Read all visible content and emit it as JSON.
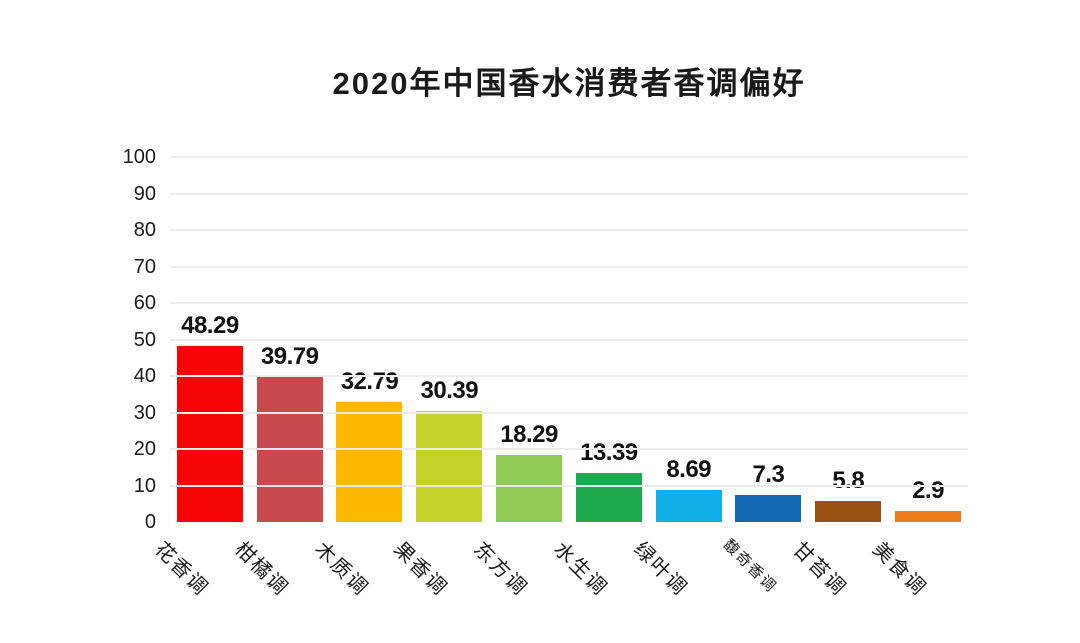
{
  "chart_data": {
    "type": "bar",
    "title": "2020年中国香水消费者香调偏好",
    "categories": [
      "花香调",
      "柑橘调",
      "木质调",
      "果香调",
      "东方调",
      "水生调",
      "绿叶调",
      "馥奇香调",
      "甘苔调",
      "美食调"
    ],
    "values": [
      48.29,
      39.79,
      32.79,
      30.39,
      18.29,
      13.39,
      8.69,
      7.3,
      5.8,
      2.9
    ],
    "value_labels": [
      "48.29",
      "39.79",
      "32.79",
      "30.39",
      "18.29",
      "13.39",
      "8.69",
      "7.3",
      "5.8",
      "2.9"
    ],
    "bar_colors": [
      "#f70505",
      "#c84a4e",
      "#fcb900",
      "#c4d32b",
      "#8fca55",
      "#1fa94e",
      "#12aee9",
      "#1268b3",
      "#9a5213",
      "#f07d1c"
    ],
    "xlabel": "",
    "ylabel": "",
    "ylim": [
      0,
      100
    ],
    "yticks": [
      0,
      10,
      20,
      30,
      40,
      50,
      60,
      70,
      80,
      90,
      100
    ],
    "grid": true,
    "legend": false,
    "background_color": "#ffffff",
    "gridline_color": "#ececec",
    "text_color": "#1a1a1a"
  }
}
